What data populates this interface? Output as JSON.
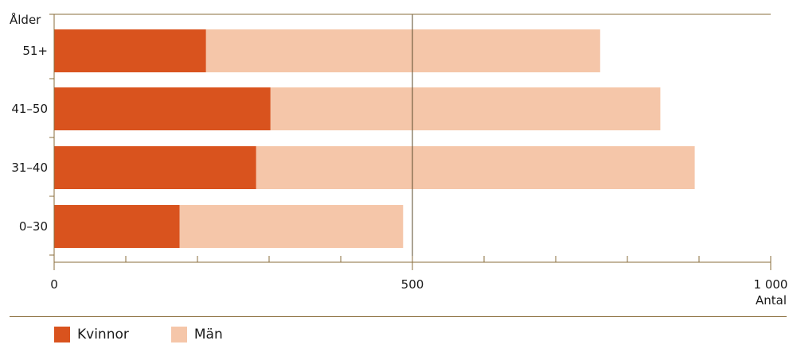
{
  "chart_data": {
    "type": "bar",
    "orientation": "horizontal",
    "stacked": true,
    "title": "",
    "ylabel": "Ålder",
    "xlabel": "Antal",
    "categories": [
      "51+",
      "41–50",
      "31–40",
      "0–30"
    ],
    "series": [
      {
        "name": "Kvinnor",
        "color": "#d9531e",
        "values": [
          212,
          302,
          282,
          175
        ]
      },
      {
        "name": "Män",
        "color": "#f5c6a9",
        "values": [
          550,
          544,
          612,
          312
        ]
      }
    ],
    "xlim": [
      0,
      1000
    ],
    "xticks": [
      0,
      500,
      1000
    ],
    "xtick_labels": [
      "0",
      "500",
      "1 000"
    ],
    "minor_tick_step": 100,
    "gridlines_at": [
      500
    ],
    "legend_position": "bottom-left"
  },
  "colors": {
    "axis": "#8a6d3b"
  }
}
